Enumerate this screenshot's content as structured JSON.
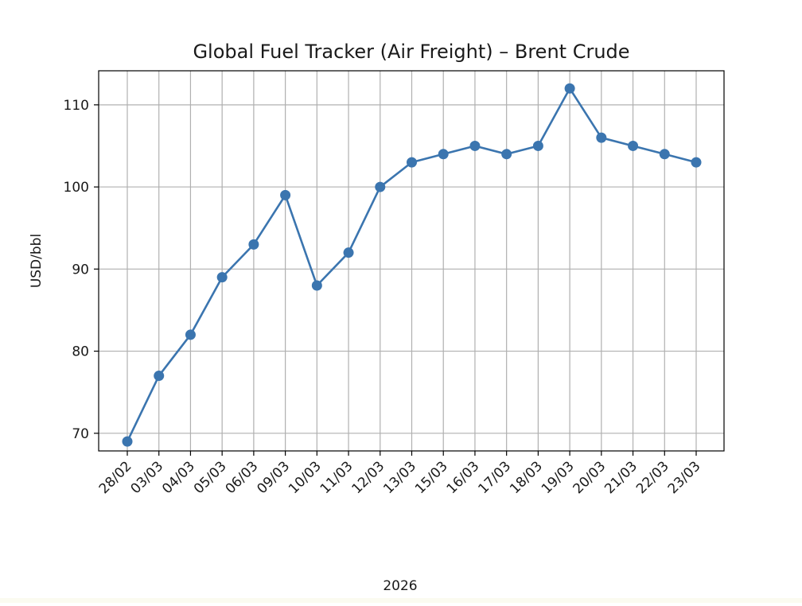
{
  "chart_data": {
    "type": "line",
    "title": "Global Fuel Tracker (Air Freight) – Brent Crude",
    "xlabel": "2026",
    "ylabel": "USD/bbl",
    "categories": [
      "28/02",
      "03/03",
      "04/03",
      "05/03",
      "06/03",
      "09/03",
      "10/03",
      "11/03",
      "12/03",
      "13/03",
      "15/03",
      "16/03",
      "17/03",
      "18/03",
      "19/03",
      "20/03",
      "21/03",
      "22/03",
      "23/03"
    ],
    "series": [
      {
        "values": [
          69,
          77,
          82,
          89,
          93,
          99,
          88,
          92,
          100,
          103,
          104,
          105,
          104,
          105,
          112,
          106,
          105,
          104,
          103
        ]
      }
    ],
    "yticks": [
      70,
      80,
      90,
      100,
      110
    ],
    "ylim": [
      67.85,
      114.15
    ],
    "grid": true,
    "line_color": "#3b75af",
    "marker": "circle"
  }
}
